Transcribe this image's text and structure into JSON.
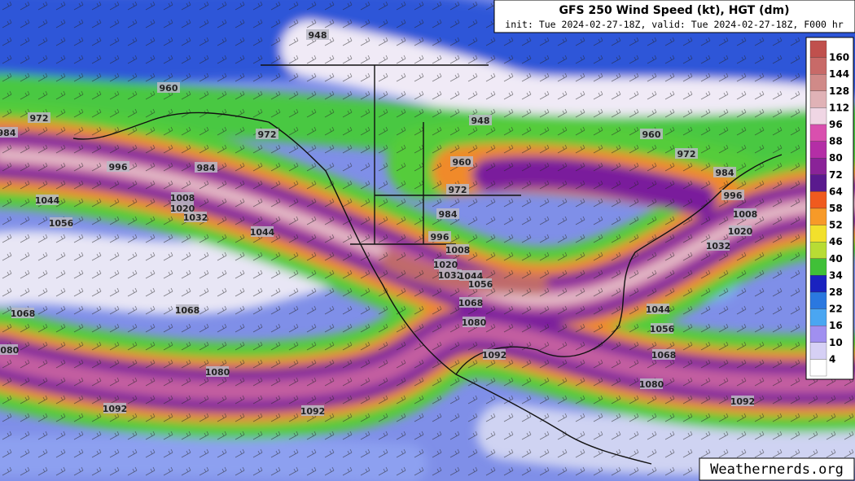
{
  "header": {
    "title": "GFS 250 Wind Speed (kt), HGT (dm)",
    "subtitle": "init: Tue 2024-02-27-18Z, valid: Tue 2024-02-27-18Z, F000 hr"
  },
  "colorbar": {
    "labels": [
      160,
      144,
      128,
      112,
      96,
      88,
      80,
      72,
      64,
      58,
      52,
      46,
      40,
      34,
      28,
      22,
      16,
      10,
      4
    ]
  },
  "contours": [
    "948",
    "960",
    "972",
    "984",
    "972",
    "948",
    "960",
    "972",
    "996",
    "984",
    "960",
    "984",
    "972",
    "996",
    "1044",
    "1008",
    "1020",
    "1032",
    "984",
    "1008",
    "1056",
    "1044",
    "996",
    "1020",
    "1008",
    "1032",
    "1020",
    "1032",
    "1044",
    "1056",
    "1068",
    "1068",
    "1068",
    "1044",
    "1080",
    "1056",
    "1080",
    "1068",
    "1092",
    "1080",
    "1080",
    "1092",
    "1092",
    "1092"
  ],
  "watermark": "Weathernerds.org"
}
